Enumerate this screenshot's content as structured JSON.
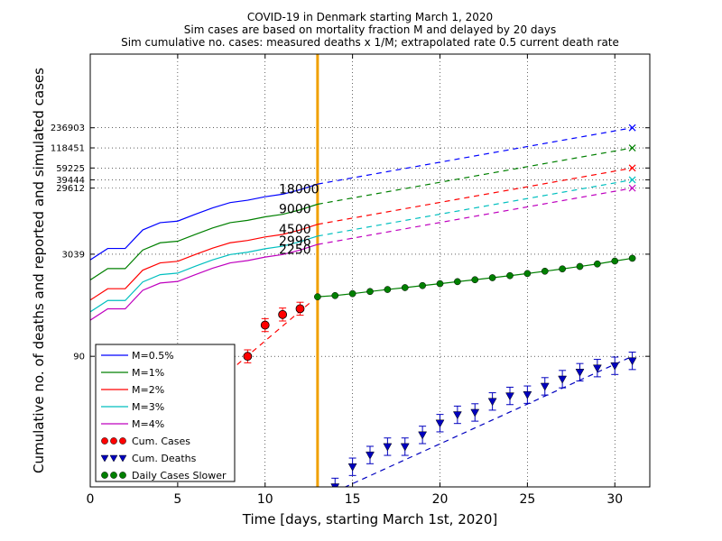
{
  "chart_data": {
    "type": "line",
    "title": [
      "COVID-19 in Denmark starting March 1, 2020",
      "Sim cases are based on mortality fraction M and delayed by 20 days",
      "Sim cumulative no. cases: measured deaths x 1/M; extrapolated rate 0.5 current death rate"
    ],
    "xlabel": "Time [days, starting March 1st, 2020]",
    "ylabel": "Cumulative no. of deaths and reported and simulated cases",
    "xlim": [
      0,
      32
    ],
    "ylim": [
      1,
      3000000
    ],
    "yscale": "log",
    "grid": true,
    "xticks": [
      0,
      5,
      10,
      15,
      20,
      25,
      30
    ],
    "yticks": [
      {
        "value": 236903,
        "label": "236903"
      },
      {
        "value": 118451,
        "label": "118451"
      },
      {
        "value": 59225,
        "label": "59225"
      },
      {
        "value": 39444,
        "label": "39444"
      },
      {
        "value": 29612,
        "label": "29612"
      },
      {
        "value": 3039,
        "label": "3039"
      },
      {
        "value": 90,
        "label": "90"
      }
    ],
    "vertical_line": {
      "x": 13,
      "color": "#f0a000"
    },
    "sim_base_days": [
      0,
      1,
      2,
      3,
      4,
      5,
      6,
      7,
      8,
      9,
      10,
      11,
      12,
      13
    ],
    "sim_base_values_m05": [
      2500,
      3700,
      3700,
      7000,
      9000,
      9500,
      12000,
      15000,
      18000,
      19500,
      22000,
      24000,
      28000,
      34000
    ],
    "series": [
      {
        "name": "M=0.5%",
        "color": "#0000ff",
        "factor": 1.0,
        "end_label": "18000",
        "extrap_end": 236903
      },
      {
        "name": "M=1%",
        "color": "#008000",
        "factor": 0.5,
        "end_label": "9000",
        "extrap_end": 118451
      },
      {
        "name": "M=2%",
        "color": "#ff0000",
        "factor": 0.25,
        "end_label": "4500",
        "extrap_end": 59225
      },
      {
        "name": "M=3%",
        "color": "#00bfbf",
        "factor": 0.1667,
        "end_label": "2996",
        "extrap_end": 39444
      },
      {
        "name": "M=4%",
        "color": "#bf00bf",
        "factor": 0.125,
        "end_label": "2250",
        "extrap_end": 29612
      }
    ],
    "cum_cases": {
      "name": "Cum. Cases",
      "color": "#ff0000",
      "x": [
        9,
        10,
        11,
        12
      ],
      "y": [
        90,
        264,
        380,
        464
      ],
      "err_factor": 1.25
    },
    "cum_deaths": {
      "name": "Cum. Deaths",
      "color": "#0000bf",
      "x": [
        14,
        15,
        16,
        17,
        18,
        19,
        20,
        21,
        22,
        23,
        24,
        25,
        26,
        27,
        28,
        29,
        30,
        31
      ],
      "y": [
        1,
        2,
        3,
        4,
        4,
        6,
        9,
        12,
        13,
        19,
        23,
        24,
        32,
        41,
        52,
        60,
        65,
        77
      ],
      "err_factor": 1.35
    },
    "daily_slower": {
      "name": "Daily Cases Slower",
      "color": "#008000",
      "x": [
        13,
        14,
        15,
        16,
        17,
        18,
        19,
        20,
        21,
        22,
        23,
        24,
        25,
        26,
        27,
        28,
        29,
        30,
        31
      ],
      "y": [
        700,
        730,
        780,
        840,
        900,
        960,
        1030,
        1100,
        1180,
        1260,
        1350,
        1450,
        1560,
        1690,
        1830,
        1990,
        2170,
        2400,
        2640
      ]
    },
    "legend_location": "lower-left"
  }
}
